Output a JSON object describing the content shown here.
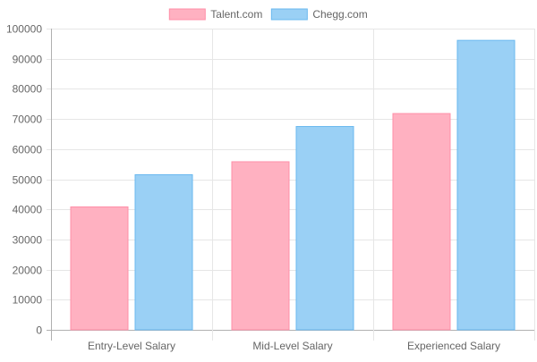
{
  "chart_data": {
    "type": "bar",
    "title": "",
    "xlabel": "",
    "ylabel": "",
    "categories": [
      "Entry-Level Salary",
      "Mid-Level Salary",
      "Experienced Salary"
    ],
    "series": [
      {
        "name": "Talent.com",
        "values": [
          40800,
          55800,
          71800
        ],
        "color": "#ffb1c1",
        "border": "#ff8fa8"
      },
      {
        "name": "Chegg.com",
        "values": [
          51500,
          67500,
          96100
        ],
        "color": "#9ad0f5",
        "border": "#6ab8ef"
      }
    ],
    "ylim": [
      0,
      100000
    ],
    "yticks": [
      0,
      10000,
      20000,
      30000,
      40000,
      50000,
      60000,
      70000,
      80000,
      90000,
      100000
    ],
    "legend_position": "top-center",
    "grid": true
  }
}
